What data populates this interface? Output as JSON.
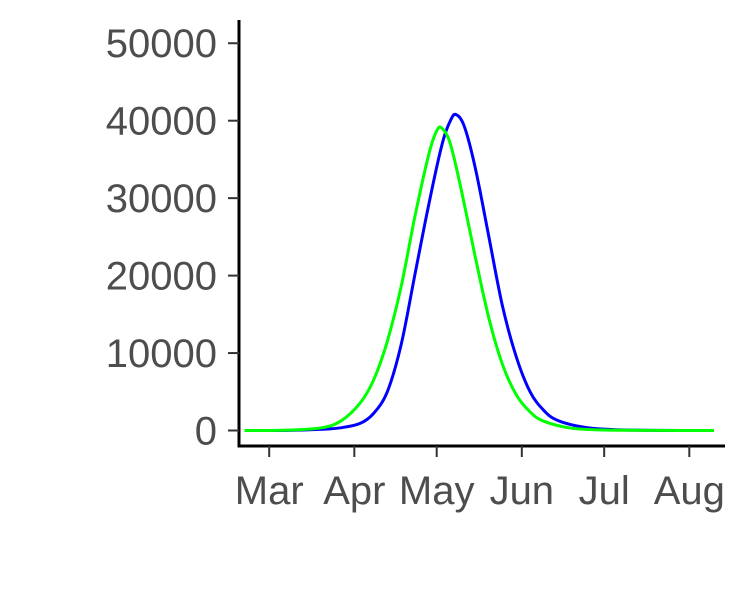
{
  "chart_data": {
    "type": "line",
    "title": "",
    "xlabel": "",
    "ylabel": "",
    "x_ticks": [
      "Mar",
      "Apr",
      "May",
      "Jun",
      "Jul",
      "Aug"
    ],
    "xlim": [
      "2020-02-19",
      "2020-08-14"
    ],
    "ylim": [
      -2000,
      53000
    ],
    "y_ticks": [
      0,
      10000,
      20000,
      30000,
      40000,
      50000
    ],
    "grid": false,
    "legend": "none",
    "series": [
      {
        "color": "#0000ff",
        "points": [
          [
            "2020-02-21",
            0
          ],
          [
            "2020-03-01",
            0
          ],
          [
            "2020-03-10",
            30
          ],
          [
            "2020-03-20",
            150
          ],
          [
            "2020-03-27",
            350
          ],
          [
            "2020-04-03",
            900
          ],
          [
            "2020-04-08",
            2200
          ],
          [
            "2020-04-13",
            5000
          ],
          [
            "2020-04-18",
            11000
          ],
          [
            "2020-04-23",
            20000
          ],
          [
            "2020-04-28",
            29000
          ],
          [
            "2020-05-03",
            37000
          ],
          [
            "2020-05-06",
            40000
          ],
          [
            "2020-05-08",
            40800
          ],
          [
            "2020-05-11",
            39300
          ],
          [
            "2020-05-15",
            34000
          ],
          [
            "2020-05-20",
            25000
          ],
          [
            "2020-05-25",
            16000
          ],
          [
            "2020-05-30",
            9500
          ],
          [
            "2020-06-04",
            5000
          ],
          [
            "2020-06-09",
            2600
          ],
          [
            "2020-06-14",
            1300
          ],
          [
            "2020-06-24",
            400
          ],
          [
            "2020-07-05",
            100
          ],
          [
            "2020-07-20",
            20
          ],
          [
            "2020-08-10",
            0
          ]
        ]
      },
      {
        "color": "#00ff00",
        "points": [
          [
            "2020-02-21",
            0
          ],
          [
            "2020-03-01",
            0
          ],
          [
            "2020-03-10",
            80
          ],
          [
            "2020-03-20",
            350
          ],
          [
            "2020-03-27",
            1200
          ],
          [
            "2020-04-03",
            3500
          ],
          [
            "2020-04-08",
            6500
          ],
          [
            "2020-04-13",
            11500
          ],
          [
            "2020-04-18",
            18500
          ],
          [
            "2020-04-23",
            27500
          ],
          [
            "2020-04-28",
            35500
          ],
          [
            "2020-05-01",
            38700
          ],
          [
            "2020-05-03",
            39000
          ],
          [
            "2020-05-06",
            37000
          ],
          [
            "2020-05-10",
            31000
          ],
          [
            "2020-05-15",
            22500
          ],
          [
            "2020-05-20",
            14500
          ],
          [
            "2020-05-25",
            8500
          ],
          [
            "2020-05-30",
            4600
          ],
          [
            "2020-06-04",
            2400
          ],
          [
            "2020-06-09",
            1200
          ],
          [
            "2020-06-19",
            300
          ],
          [
            "2020-07-01",
            70
          ],
          [
            "2020-07-20",
            10
          ],
          [
            "2020-08-10",
            0
          ]
        ]
      }
    ]
  }
}
